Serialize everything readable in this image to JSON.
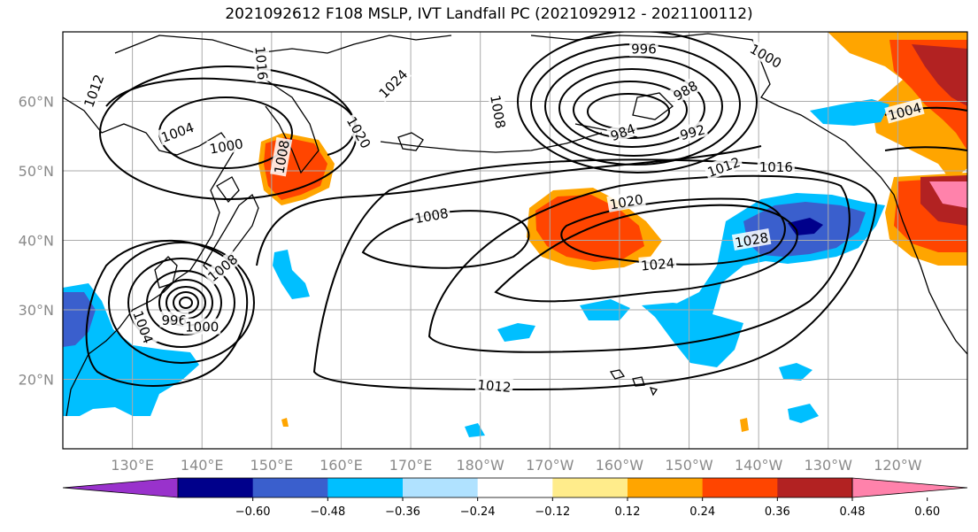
{
  "title": "2021092612 F108 MSLP, IVT Landfall PC (2021092912 - 2021100112)",
  "map": {
    "lon_range": [
      120,
      250
    ],
    "lat_range": [
      10,
      70
    ],
    "lat_ticks": [
      {
        "lat": 60,
        "label": "60°N"
      },
      {
        "lat": 50,
        "label": "50°N"
      },
      {
        "lat": 40,
        "label": "40°N"
      },
      {
        "lat": 30,
        "label": "30°N"
      },
      {
        "lat": 20,
        "label": "20°N"
      }
    ],
    "lon_ticks": [
      {
        "lon": 130,
        "label": "130°E"
      },
      {
        "lon": 140,
        "label": "140°E"
      },
      {
        "lon": 150,
        "label": "150°E"
      },
      {
        "lon": 160,
        "label": "160°E"
      },
      {
        "lon": 170,
        "label": "170°E"
      },
      {
        "lon": 180,
        "label": "180°W"
      },
      {
        "lon": 190,
        "label": "170°W"
      },
      {
        "lon": 200,
        "label": "160°W"
      },
      {
        "lon": 210,
        "label": "150°W"
      },
      {
        "lon": 220,
        "label": "140°W"
      },
      {
        "lon": 230,
        "label": "130°W"
      },
      {
        "lon": 240,
        "label": "120°W"
      }
    ],
    "contour_labels": [
      {
        "text": "1012",
        "lon": 124.5,
        "lat": 61.5,
        "rot": -70
      },
      {
        "text": "1004",
        "lon": 136.5,
        "lat": 55.5,
        "rot": -20
      },
      {
        "text": "1000",
        "lon": 143.5,
        "lat": 53.5,
        "rot": -10
      },
      {
        "text": "1016",
        "lon": 148.5,
        "lat": 65.5,
        "rot": 85
      },
      {
        "text": "1020",
        "lon": 162.5,
        "lat": 55.5,
        "rot": 60
      },
      {
        "text": "1024",
        "lon": 167.5,
        "lat": 62.5,
        "rot": -45
      },
      {
        "text": "1008",
        "lon": 151.5,
        "lat": 52.0,
        "rot": -80
      },
      {
        "text": "996",
        "lon": 203.5,
        "lat": 67.5,
        "rot": 0
      },
      {
        "text": "1000",
        "lon": 221.0,
        "lat": 66.5,
        "rot": 30
      },
      {
        "text": "1008",
        "lon": 182.5,
        "lat": 58.5,
        "rot": 80
      },
      {
        "text": "988",
        "lon": 209.5,
        "lat": 61.5,
        "rot": -30
      },
      {
        "text": "984",
        "lon": 200.5,
        "lat": 55.5,
        "rot": -20
      },
      {
        "text": "992",
        "lon": 210.5,
        "lat": 55.5,
        "rot": -15
      },
      {
        "text": "1012",
        "lon": 215.0,
        "lat": 50.5,
        "rot": -20
      },
      {
        "text": "1016",
        "lon": 222.5,
        "lat": 50.5,
        "rot": 0
      },
      {
        "text": "1004",
        "lon": 241.0,
        "lat": 58.5,
        "rot": -15
      },
      {
        "text": "1020",
        "lon": 201.0,
        "lat": 45.5,
        "rot": -10
      },
      {
        "text": "1008",
        "lon": 173.0,
        "lat": 43.5,
        "rot": -10
      },
      {
        "text": "1028",
        "lon": 219.0,
        "lat": 40.0,
        "rot": -10
      },
      {
        "text": "1024",
        "lon": 205.5,
        "lat": 36.5,
        "rot": -5
      },
      {
        "text": "1008",
        "lon": 143.0,
        "lat": 36.0,
        "rot": -40
      },
      {
        "text": "1004",
        "lon": 131.5,
        "lat": 27.5,
        "rot": 70
      },
      {
        "text": "996",
        "lon": 136.0,
        "lat": 28.5,
        "rot": 0
      },
      {
        "text": "1000",
        "lon": 140.0,
        "lat": 27.5,
        "rot": 0
      },
      {
        "text": "1012",
        "lon": 182.0,
        "lat": 19.0,
        "rot": 5
      }
    ]
  },
  "colorbar": {
    "colors": [
      "#9932cc",
      "#00008b",
      "#3a5fcd",
      "#00bfff",
      "#b0e2ff",
      "#ffffff",
      "#ffec8b",
      "#ffa500",
      "#ff4500",
      "#b22222",
      "#ff82ab"
    ],
    "ticks": [
      "−0.60",
      "−0.48",
      "−0.36",
      "−0.24",
      "−0.12",
      "0.12",
      "0.24",
      "0.36",
      "0.48",
      "0.60"
    ]
  }
}
